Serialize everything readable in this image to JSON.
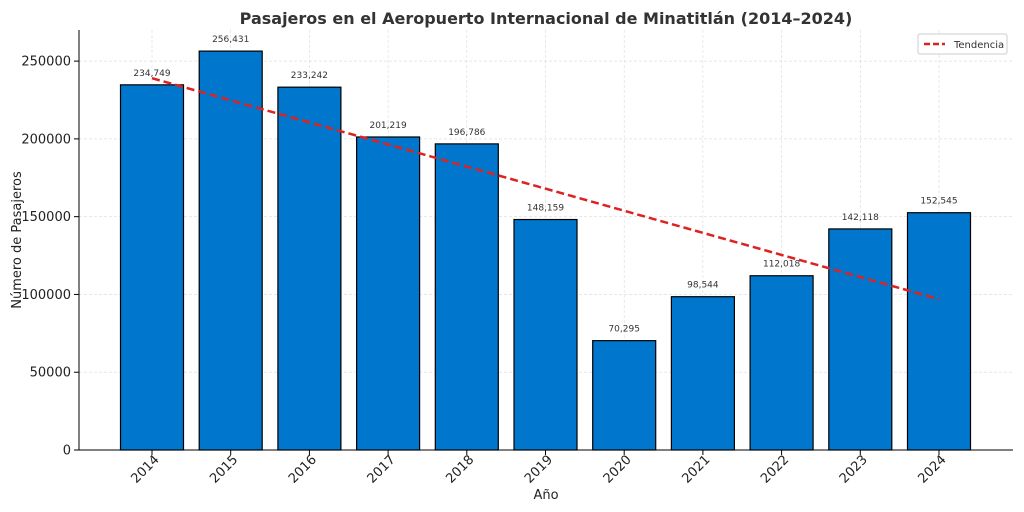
{
  "chart_data": {
    "type": "bar",
    "title": "Pasajeros en el Aeropuerto Internacional de Minatitlán (2014–2024)",
    "xlabel": "Año",
    "ylabel": "Número de Pasajeros",
    "categories": [
      "2014",
      "2015",
      "2016",
      "2017",
      "2018",
      "2019",
      "2020",
      "2021",
      "2022",
      "2023",
      "2024"
    ],
    "values": [
      234749,
      256431,
      233242,
      201219,
      196786,
      148159,
      70295,
      98544,
      112018,
      142118,
      152545
    ],
    "value_labels": [
      "234,749",
      "256,431",
      "233,242",
      "201,219",
      "196,786",
      "148,159",
      "70,295",
      "98,544",
      "112,018",
      "142,118",
      "152,545"
    ],
    "ylim": [
      0,
      270000
    ],
    "yticks": [
      0,
      50000,
      100000,
      150000,
      200000,
      250000
    ],
    "ytick_labels": [
      "0",
      "50000",
      "100000",
      "150000",
      "200000",
      "250000"
    ],
    "grid": true,
    "bar_color": "#0077CC",
    "bar_edge_color": "#000000",
    "trend": {
      "name": "Tendencia",
      "color": "#DD2222",
      "style": "dashed",
      "start": {
        "x": "2014",
        "y": 239000
      },
      "end": {
        "x": "2024",
        "y": 97000
      }
    },
    "legend": {
      "position": "top-right",
      "entries": [
        "Tendencia"
      ]
    }
  }
}
